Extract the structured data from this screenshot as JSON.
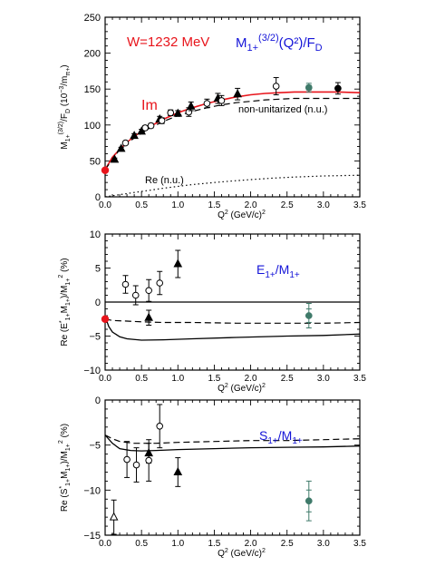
{
  "colors": {
    "red": "#e8141b",
    "blue": "#1515d8",
    "green": "#3f7a6a",
    "black": "#000000"
  },
  "chart_data": [
    {
      "type": "line",
      "panel": "M1+",
      "xlabel": "Q² (GeV/c)²",
      "ylabel": "M1+(3/2)/FD   (10⁻³/mπ+)",
      "xlim": [
        0,
        3.5
      ],
      "ylim": [
        0,
        250
      ],
      "xticks": [
        0.0,
        0.5,
        1.0,
        1.5,
        2.0,
        2.5,
        3.0,
        3.5
      ],
      "xtick_labels": [
        "0.0",
        "0.5",
        "1.0",
        "1.5",
        "2.0",
        "2.5",
        "3.0",
        "3.5"
      ],
      "yticks": [
        0,
        50,
        100,
        150,
        200,
        250
      ],
      "ytick_labels": [
        "0",
        "50",
        "100",
        "150",
        "200",
        "250"
      ],
      "annotations": [
        {
          "id": "w",
          "text": "W=1232  MeV",
          "color": "red"
        },
        {
          "id": "title",
          "base": "M",
          "sub": "1+",
          "sup": "(3/2)",
          "tail": "(Q²)/F",
          "tail_sub": "D",
          "color": "blue"
        },
        {
          "id": "im",
          "text": "Im",
          "color": "red"
        },
        {
          "id": "nonunit",
          "text": "non-unitarized (n.u.)",
          "color": "black"
        },
        {
          "id": "re",
          "text": "Re (n.u.)",
          "color": "black"
        }
      ],
      "series": [
        {
          "style": "solid-red",
          "x": [
            0,
            0.1,
            0.2,
            0.3,
            0.4,
            0.5,
            0.6,
            0.8,
            1.0,
            1.2,
            1.4,
            1.6,
            1.8,
            2.0,
            2.2,
            2.4,
            2.6,
            2.8,
            3.0,
            3.2,
            3.5
          ],
          "y": [
            38,
            55,
            66,
            76,
            84,
            91,
            97,
            108,
            117,
            124,
            130,
            135,
            139,
            142,
            144,
            145,
            146,
            146,
            146,
            146,
            145
          ]
        },
        {
          "style": "dashed-black",
          "x": [
            0,
            0.2,
            0.4,
            0.6,
            0.8,
            1.0,
            1.2,
            1.4,
            1.6,
            1.8,
            2.0,
            2.2,
            2.4,
            2.6,
            2.8,
            3.0,
            3.2,
            3.5
          ],
          "y": [
            38,
            66,
            82,
            95,
            105,
            113,
            119,
            124,
            128,
            131,
            133,
            135,
            136,
            137,
            137,
            137,
            137,
            137
          ]
        },
        {
          "style": "dotted-black",
          "x": [
            0,
            0.2,
            0.4,
            0.6,
            0.8,
            1.0,
            1.2,
            1.5,
            1.8,
            2.0,
            2.3,
            2.6,
            3.0,
            3.5
          ],
          "y": [
            0,
            3,
            6,
            9,
            12,
            14.5,
            17,
            20,
            22.5,
            24,
            26,
            27.5,
            29,
            30
          ]
        }
      ],
      "points": [
        {
          "marker": "dot-red",
          "x": 0.0,
          "y": 37,
          "err": 0
        },
        {
          "marker": "tri",
          "x": 0.13,
          "y": 52,
          "err": 2
        },
        {
          "marker": "tri",
          "x": 0.22,
          "y": 67,
          "err": 2
        },
        {
          "marker": "circle",
          "x": 0.28,
          "y": 75,
          "err": 2
        },
        {
          "marker": "tri",
          "x": 0.4,
          "y": 85,
          "err": 3
        },
        {
          "marker": "tri",
          "x": 0.5,
          "y": 91,
          "err": 3
        },
        {
          "marker": "circle",
          "x": 0.55,
          "y": 96,
          "err": 3
        },
        {
          "marker": "circle",
          "x": 0.63,
          "y": 99,
          "err": 3
        },
        {
          "marker": "tri",
          "x": 0.75,
          "y": 108,
          "err": 4
        },
        {
          "marker": "circle",
          "x": 0.78,
          "y": 106,
          "err": 4
        },
        {
          "marker": "circle",
          "x": 0.9,
          "y": 117,
          "err": 4
        },
        {
          "marker": "tri",
          "x": 1.0,
          "y": 116,
          "err": 4
        },
        {
          "marker": "circle",
          "x": 1.15,
          "y": 118,
          "err": 6
        },
        {
          "marker": "tri",
          "x": 1.18,
          "y": 126,
          "err": 6
        },
        {
          "marker": "circle",
          "x": 1.4,
          "y": 130,
          "err": 6
        },
        {
          "marker": "tri",
          "x": 1.55,
          "y": 137,
          "err": 7
        },
        {
          "marker": "circle",
          "x": 1.6,
          "y": 134,
          "err": 7
        },
        {
          "marker": "tri",
          "x": 1.82,
          "y": 143,
          "err": 8
        },
        {
          "marker": "circle",
          "x": 2.35,
          "y": 154,
          "err": 12
        },
        {
          "marker": "dot-green",
          "x": 2.8,
          "y": 152,
          "err": 6
        },
        {
          "marker": "dot-black",
          "x": 3.2,
          "y": 151,
          "err": 8
        }
      ]
    },
    {
      "type": "line",
      "panel": "EMR",
      "xlabel": "Q² (GeV/c)²",
      "ylabel": "Re (E*1+M1+)/M1+² (%)",
      "xlim": [
        0,
        3.5
      ],
      "ylim": [
        -10,
        10
      ],
      "xticks": [
        0.0,
        0.5,
        1.0,
        1.5,
        2.0,
        2.5,
        3.0,
        3.5
      ],
      "xtick_labels": [
        "0.0",
        "0.5",
        "1.0",
        "1.5",
        "2.0",
        "2.5",
        "3.0",
        "3.5"
      ],
      "yticks": [
        -10,
        -5,
        0,
        5,
        10
      ],
      "ytick_labels": [
        "−10",
        "−5",
        "0",
        "5",
        "10"
      ],
      "annotations": [
        {
          "id": "title",
          "base": "E",
          "sub": "1+",
          "mid": "/M",
          "mid_sub": "1+",
          "color": "blue"
        }
      ],
      "series": [
        {
          "style": "solid-black",
          "x": [
            0,
            3.5
          ],
          "y": [
            0,
            0
          ]
        },
        {
          "style": "dashed-black",
          "x": [
            0,
            0.1,
            0.3,
            0.5,
            0.8,
            1.2,
            1.8,
            2.5,
            3.0,
            3.5
          ],
          "y": [
            -2.5,
            -2.7,
            -2.8,
            -2.9,
            -3.0,
            -3.0,
            -3.1,
            -3.1,
            -3.1,
            -3.0
          ]
        },
        {
          "style": "solid-black",
          "x": [
            0.02,
            0.05,
            0.1,
            0.2,
            0.3,
            0.5,
            0.8,
            1.2,
            1.8,
            2.5,
            3.0,
            3.5
          ],
          "y": [
            -2.7,
            -3.6,
            -4.4,
            -5.1,
            -5.4,
            -5.6,
            -5.55,
            -5.4,
            -5.2,
            -5.0,
            -4.9,
            -4.7
          ]
        }
      ],
      "points": [
        {
          "marker": "dot-red",
          "x": 0.0,
          "y": -2.5,
          "err": 0
        },
        {
          "marker": "circle",
          "x": 0.28,
          "y": 2.6,
          "err": 1.3
        },
        {
          "marker": "circle",
          "x": 0.42,
          "y": 1.0,
          "err": 1.4
        },
        {
          "marker": "circle",
          "x": 0.6,
          "y": 1.7,
          "err": 1.6
        },
        {
          "marker": "circle",
          "x": 0.75,
          "y": 2.8,
          "err": 1.7
        },
        {
          "marker": "tri",
          "x": 0.6,
          "y": -2.3,
          "err": 1.1
        },
        {
          "marker": "tri",
          "x": 1.0,
          "y": 5.6,
          "err": 2.0
        },
        {
          "marker": "dot-green",
          "x": 2.8,
          "y": -2.0,
          "err": 1.8
        }
      ]
    },
    {
      "type": "line",
      "panel": "SMR",
      "xlabel": "Q² (GeV/c)²",
      "ylabel": "Re (S*1+M1+)/M1+² (%)",
      "xlim": [
        0,
        3.5
      ],
      "ylim": [
        -15,
        0
      ],
      "xticks": [
        0.0,
        0.5,
        1.0,
        1.5,
        2.0,
        2.5,
        3.0,
        3.5
      ],
      "xtick_labels": [
        "0.0",
        "0.5",
        "1.0",
        "1.5",
        "2.0",
        "2.5",
        "3.0",
        "3.5"
      ],
      "yticks": [
        -15,
        -10,
        -5,
        0
      ],
      "ytick_labels": [
        "−15",
        "−10",
        "−5",
        "0"
      ],
      "annotations": [
        {
          "id": "title",
          "base": "S",
          "sub": "1+",
          "mid": "/M",
          "mid_sub": "1+",
          "color": "blue"
        }
      ],
      "series": [
        {
          "style": "dashed-black",
          "x": [
            0,
            0.1,
            0.2,
            0.4,
            0.7,
            1.0,
            1.5,
            2.0,
            2.5,
            3.0,
            3.5
          ],
          "y": [
            -3.9,
            -4.3,
            -4.6,
            -4.8,
            -4.8,
            -4.7,
            -4.6,
            -4.5,
            -4.5,
            -4.4,
            -4.3
          ]
        },
        {
          "style": "solid-black",
          "x": [
            0,
            0.1,
            0.2,
            0.35,
            0.5,
            0.7,
            1.0,
            1.5,
            2.0,
            2.5,
            3.0,
            3.5
          ],
          "y": [
            -3.9,
            -4.8,
            -5.4,
            -5.6,
            -5.65,
            -5.6,
            -5.5,
            -5.4,
            -5.3,
            -5.25,
            -5.2,
            -5.1
          ]
        }
      ],
      "points": [
        {
          "marker": "tri-open",
          "x": 0.12,
          "y": -13.0,
          "err": 1.9
        },
        {
          "marker": "circle",
          "x": 0.3,
          "y": -6.6,
          "err": 2.0
        },
        {
          "marker": "circle",
          "x": 0.43,
          "y": -7.2,
          "err": 1.9
        },
        {
          "marker": "tri",
          "x": 0.6,
          "y": -5.9,
          "err": 1.1
        },
        {
          "marker": "circle",
          "x": 0.6,
          "y": -6.7,
          "err": 2.3
        },
        {
          "marker": "circle",
          "x": 0.75,
          "y": -2.9,
          "err": 2.4
        },
        {
          "marker": "tri",
          "x": 1.0,
          "y": -8.0,
          "err": 1.6
        },
        {
          "marker": "dot-green",
          "x": 2.8,
          "y": -11.2,
          "err": 2.2
        }
      ]
    }
  ]
}
